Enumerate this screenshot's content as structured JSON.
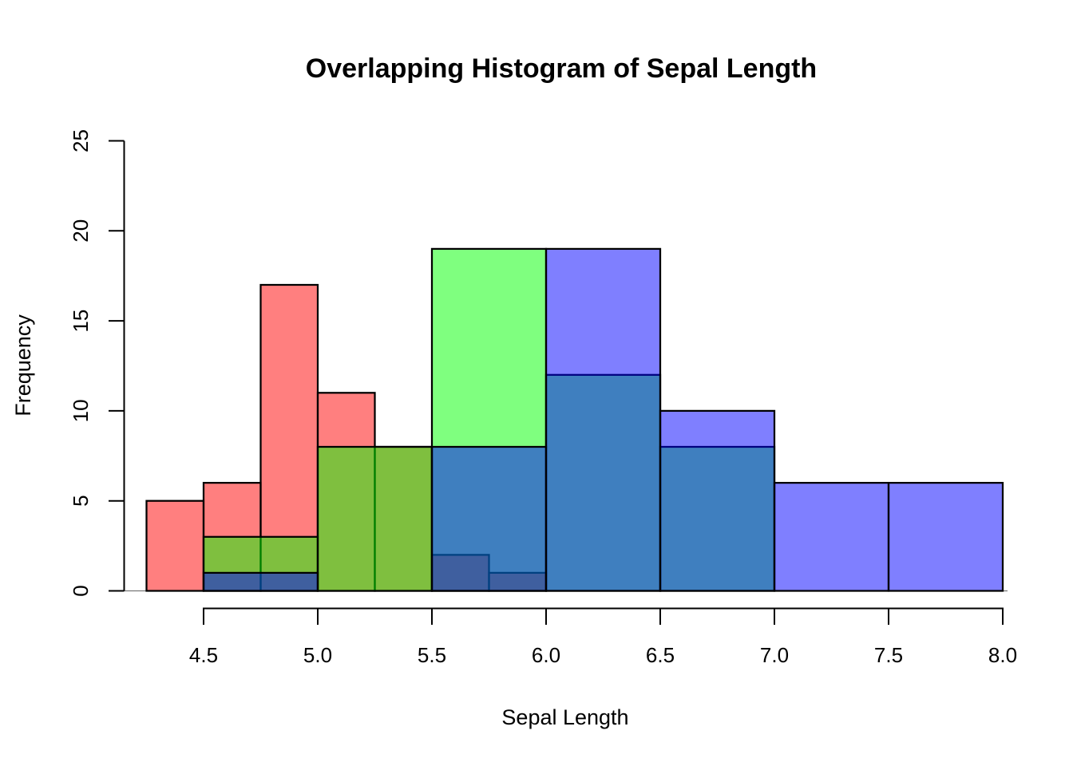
{
  "figure": {
    "background": "#FFFFFF"
  },
  "chart_data": {
    "type": "histogram",
    "title": "Overlapping Histogram of Sepal Length",
    "xlabel": "Sepal Length",
    "ylabel": "Frequency",
    "x_ticks": {
      "values": [
        4.5,
        5.0,
        5.5,
        6.0,
        6.5,
        7.0,
        7.5,
        8.0
      ],
      "labels": [
        "4.5",
        "5.0",
        "5.5",
        "6.0",
        "6.5",
        "7.0",
        "7.5",
        "8.0"
      ]
    },
    "y_ticks": {
      "values": [
        0,
        5,
        10,
        15,
        20,
        25
      ],
      "labels": [
        "0",
        "5",
        "10",
        "15",
        "20",
        "25"
      ]
    },
    "xlim": [
      4.1,
      8.15
    ],
    "ylim": [
      0,
      25
    ],
    "grid": false,
    "legend": "none",
    "axis_color": "#000000",
    "baseline_color": "#777777",
    "series": [
      {
        "name": "red",
        "fill": "#FF0000",
        "fill_alpha": 0.5,
        "border": "#000000",
        "breaks": [
          4.25,
          4.5,
          4.75,
          5.0,
          5.25,
          5.5,
          5.75,
          6.0
        ],
        "counts": [
          5,
          6,
          17,
          11,
          8,
          2,
          1
        ]
      },
      {
        "name": "green",
        "fill": "#00FF00",
        "fill_alpha": 0.5,
        "border": "#000000",
        "breaks": [
          4.5,
          5.0,
          5.5,
          6.0,
          6.5,
          7.0
        ],
        "counts": [
          3,
          8,
          19,
          12,
          8
        ]
      },
      {
        "name": "blue",
        "fill": "#0000FF",
        "fill_alpha": 0.5,
        "border": "#000000",
        "breaks": [
          4.5,
          5.0,
          5.5,
          6.0,
          6.5,
          7.0,
          7.5,
          8.0
        ],
        "counts": [
          1,
          0,
          8,
          19,
          10,
          6,
          6
        ]
      }
    ]
  }
}
